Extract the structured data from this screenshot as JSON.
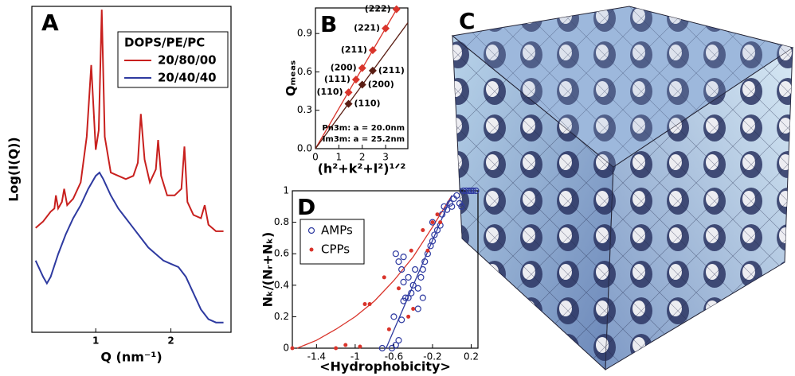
{
  "chart_data": [
    {
      "type": "line",
      "label": "A",
      "x_label": "Q (nm⁻¹)",
      "y_label": "Log(I(Q))",
      "xlim": [
        0.15,
        2.8
      ],
      "ylim": [
        0,
        100
      ],
      "xticks": [
        1,
        2
      ],
      "legend": "upper right",
      "legend_title": "DOPS/PE/PC",
      "series": [
        {
          "name": "20/80/00",
          "color": "#c8201e",
          "x": [
            0.2,
            0.3,
            0.4,
            0.45,
            0.47,
            0.5,
            0.55,
            0.58,
            0.62,
            0.7,
            0.8,
            0.88,
            0.94,
            1.0,
            1.04,
            1.08,
            1.12,
            1.2,
            1.3,
            1.4,
            1.5,
            1.56,
            1.6,
            1.65,
            1.72,
            1.8,
            1.83,
            1.87,
            1.95,
            2.05,
            2.14,
            2.18,
            2.22,
            2.3,
            2.4,
            2.45,
            2.5,
            2.6,
            2.7
          ],
          "values": [
            32,
            34,
            37,
            38,
            42,
            38,
            40,
            44,
            39,
            41,
            46,
            60,
            82,
            56,
            62,
            99,
            60,
            49,
            48,
            47,
            48,
            52,
            67,
            53,
            46,
            50,
            59,
            48,
            42,
            42,
            44,
            57,
            40,
            36,
            35,
            39,
            33,
            31,
            31
          ]
        },
        {
          "name": "20/40/40",
          "color": "#2e3aa0",
          "x": [
            0.2,
            0.3,
            0.35,
            0.4,
            0.5,
            0.6,
            0.7,
            0.8,
            0.9,
            1.0,
            1.05,
            1.1,
            1.2,
            1.3,
            1.4,
            1.5,
            1.6,
            1.7,
            1.8,
            1.9,
            2.0,
            2.1,
            2.2,
            2.3,
            2.4,
            2.5,
            2.6,
            2.7
          ],
          "values": [
            22,
            17,
            15,
            17,
            24,
            30,
            35,
            39,
            44,
            48,
            49,
            47,
            42,
            38,
            35,
            32,
            29,
            26,
            24,
            22,
            21,
            20,
            17,
            12,
            7,
            4,
            3,
            3
          ]
        }
      ]
    },
    {
      "type": "scatter",
      "label": "B",
      "x_label": "(h²+k²+l²)¹ᐟ²",
      "y_label": "Qₘₑₐₛ",
      "xlim": [
        0,
        3.95
      ],
      "ylim": [
        0,
        1.1
      ],
      "xticks": [
        0,
        1,
        2,
        3
      ],
      "yticks": [
        {
          "value": 0,
          "label": "0.0"
        },
        {
          "value": 0.3,
          "label": "0.3"
        },
        {
          "value": 0.6,
          "label": "0.6"
        },
        {
          "value": 0.9,
          "label": "0.9"
        }
      ],
      "fit_through_origin": true,
      "series": [
        {
          "color": "#d9342b",
          "marker": "diamond",
          "x": [
            1.414,
            1.732,
            2,
            2.449,
            3,
            3.464
          ],
          "values": [
            0.44,
            0.54,
            0.63,
            0.77,
            0.94,
            1.09
          ],
          "point_labels": [
            "(110)",
            "(111)",
            "(200)",
            "(211)",
            "(221)",
            "(222)"
          ]
        },
        {
          "color": "#5a1e14",
          "marker": "diamond",
          "x": [
            1.414,
            2,
            2.449
          ],
          "values": [
            0.35,
            0.5,
            0.61
          ],
          "point_labels": [
            "(110)",
            "(200)",
            "(211)"
          ]
        }
      ],
      "annotations": [
        {
          "text": "Pn3m:  a = 20.0nm",
          "color": "#d9342b"
        },
        {
          "text": "Im3m:  a = 25.2nm",
          "color": "#5a1e14"
        }
      ]
    },
    {
      "type": "scatter",
      "label": "D",
      "x_label": "<Hydrophobicity>",
      "y_label": "Nₖ/(Nᵣ+Nₖ)",
      "xlim": [
        -1.65,
        0.27
      ],
      "ylim": [
        0,
        1
      ],
      "xticks": [
        -1.4,
        -1,
        -0.6,
        -0.2,
        0.2
      ],
      "yticks": [
        0,
        0.2,
        0.4,
        0.6,
        0.8,
        1
      ],
      "legend": "upper left",
      "series": [
        {
          "name": "AMPs",
          "color": "#2e3aa0",
          "marker": "open-circle",
          "x": [
            -0.72,
            -0.62,
            -0.58,
            -0.55,
            -0.6,
            -0.52,
            -0.5,
            -0.48,
            -0.45,
            -0.42,
            -0.5,
            -0.55,
            -0.5,
            -0.58,
            -0.52,
            -0.45,
            -0.4,
            -0.38,
            -0.35,
            -0.32,
            -0.3,
            -0.28,
            -0.25,
            -0.22,
            -0.2,
            -0.18,
            -0.15,
            -0.12,
            -0.2,
            -0.1,
            -0.08,
            -0.05,
            -0.02,
            0,
            0.02,
            0.05,
            0.08,
            0.1,
            0.12,
            0.15,
            0.18,
            0.2,
            0.22,
            0.25,
            -0.3,
            -0.35
          ],
          "values": [
            0,
            0,
            0.02,
            0.05,
            0.2,
            0.18,
            0.3,
            0.32,
            0.32,
            0.35,
            0.42,
            0.55,
            0.58,
            0.6,
            0.5,
            0.45,
            0.4,
            0.5,
            0.38,
            0.45,
            0.5,
            0.55,
            0.6,
            0.65,
            0.68,
            0.72,
            0.75,
            0.78,
            0.8,
            0.85,
            0.9,
            0.88,
            0.92,
            0.9,
            0.95,
            0.97,
            0.92,
            0.9,
            1,
            1,
            1,
            1,
            1,
            1,
            0.32,
            0.25
          ]
        },
        {
          "name": "CPPs",
          "color": "#d9342b",
          "marker": "dot",
          "x": [
            -1.65,
            -1.2,
            -1.1,
            -0.95,
            -0.85,
            -0.9,
            -0.7,
            -0.65,
            -0.55,
            -0.45,
            -0.42,
            -0.4,
            -0.3,
            -0.25,
            -0.2,
            -0.15,
            -0.12
          ],
          "values": [
            0,
            0,
            0.02,
            0.01,
            0.28,
            0.28,
            0.45,
            0.12,
            0.38,
            0.2,
            0.62,
            0.25,
            0.75,
            0.62,
            0.8,
            0.85,
            0.8
          ]
        }
      ],
      "fits": [
        {
          "color": "#d9342b",
          "x": [
            -1.6,
            -1.4,
            -1.2,
            -1.0,
            -0.8,
            -0.6,
            -0.4,
            -0.2,
            0
          ],
          "values": [
            0,
            0.05,
            0.12,
            0.2,
            0.3,
            0.43,
            0.58,
            0.77,
            0.97
          ]
        },
        {
          "color": "#2e3aa0",
          "x": [
            -0.68,
            0
          ],
          "values": [
            0,
            0.97
          ]
        }
      ]
    }
  ],
  "image_panel": {
    "label": "C"
  }
}
